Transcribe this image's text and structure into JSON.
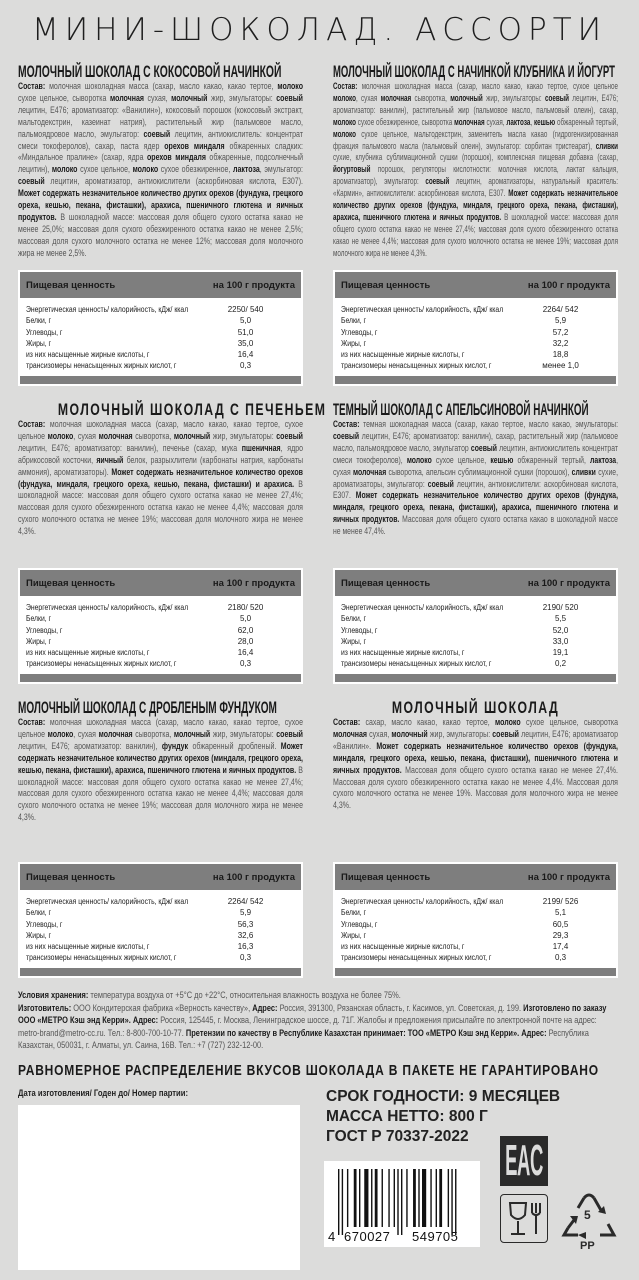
{
  "title": "МИНИ-ШОКОЛАД. АССОРТИ",
  "nutrition_header": {
    "label": "Пищевая ценность",
    "per": "на 100 г продукта"
  },
  "nutrition_labels": [
    "Энергетическая ценность/ калорийность, кДж/ ккал",
    "Белки, г",
    "Углеводы, г",
    "Жиры, г",
    "из них насыщенные жирные кислоты, г",
    "трансизомеры ненасыщенных жирных кислот, г"
  ],
  "sections": [
    {
      "title": "МОЛОЧНЫЙ ШОКОЛАД С КОКОСОВОЙ НАЧИНКОЙ",
      "composition": [
        "",
        "Состав:",
        " молочная шоколадная масса (сахар, масло какао, какао тертое, ",
        "молоко",
        " сухое цельное, сыворотка ",
        "молочная",
        " сухая, ",
        "молочный",
        " жир, эмульгаторы: ",
        "соевый",
        " лецитин, Е476; ароматизатор: «Ванилин»), кокосовый порошок (кокосовый экстракт, мальтодекстрин, казеинат натрия), растительный жир (пальмовое масло, пальмоядровое масло, эмульгатор: ",
        "соевый",
        " лецитин, антиокислитель: концентрат смеси токоферолов), сахар, паста ядер ",
        "орехов миндаля",
        " обжаренных сладких: «Миндальное пралине» (сахар, ядра ",
        "орехов миндаля",
        " обжаренные, подсолнечный лецитин), ",
        "молоко",
        " сухое цельное, ",
        "молоко",
        " сухое обезжиренное, ",
        "лактоза",
        ", эмульгатор: ",
        "соевый",
        " лецитин, ароматизатор, антиокислители (аскорбиновая кислота, Е307). ",
        "Может содержать незначительное количество других орехов (фундука, грецкого ореха, кешью, пекана, фисташки), арахиса, пшеничного глютена и яичных продуктов.",
        " В шоколадной массе: массовая доля общего сухого остатка какао не менее 25,0%; массовая доля сухого обезжиренного остатка какао не менее 2,5%; массовая доля сухого молочного остатка не менее 12%; массовая доля молочного жира не менее 2,5%."
      ],
      "nutrition": [
        "2250/ 540",
        "5,0",
        "51,0",
        "35,0",
        "16,4",
        "0,3"
      ]
    },
    {
      "title": "МОЛОЧНЫЙ ШОКОЛАД С НАЧИНКОЙ КЛУБНИКА И ЙОГУРТ",
      "composition": [
        "",
        "Состав:",
        " молочная шоколадная масса (сахар, масло какао, какао тертое, сухое цельное ",
        "молоко",
        ", сухая ",
        "молочная",
        " сыворотка, ",
        "молочный",
        " жир, эмульгаторы: ",
        "соевый",
        " лецитин, Е476; ароматизатор: ванилин), растительный жир (пальмовое масло, пальмовый олеин), сахар, ",
        "молоко",
        " сухое обезжиренное, сыворотка ",
        "молочная",
        " сухая, ",
        "лактоза",
        ", ",
        "кешью",
        " обжаренный тертый, ",
        "молоко",
        " сухое цельное, мальтодекстрин, заменитель масла какао (гидрогенизированная фракция пальмового масла (пальмовый олеин), эмульгатор: сорбитан тристеарат), ",
        "сливки",
        " сухие, клубника сублимационной сушки (порошок), комплексная пищевая добавка (сахар, ",
        "йогуртовый",
        " порошок, регуляторы кислотности: молочная кислота, лактат кальция, ароматизатор), эмульгатор: ",
        "соевый",
        " лецитин, ароматизаторы, натуральный краситель: «Кармин», антиокислители: аскорбиновая кислота, Е307. ",
        "Может содержать незначительное количество других орехов (фундука, миндаля, грецкого ореха, пекана, фисташки), арахиса, пшеничного глютена и яичных продуктов.",
        " В шоколадной массе: массовая доля общего сухого остатка какао не менее 27,4%; массовая доля сухого обезжиренного остатка какао не менее 4,4%; массовая доля сухого молочного остатка не менее 19%; массовая доля молочного жира не менее 4,3%."
      ],
      "nutrition": [
        "2264/ 542",
        "5,9",
        "57,2",
        "32,2",
        "18,8",
        "менее 1,0"
      ]
    },
    {
      "title": "МОЛОЧНЫЙ ШОКОЛАД С ПЕЧЕНЬЕМ",
      "composition": [
        "",
        "Состав:",
        " молочная шоколадная масса (сахар, масло какао, какао тертое, сухое цельное ",
        "молоко",
        ", сухая ",
        "молочная",
        " сыворотка, ",
        "молочный",
        " жир, эмульгаторы: ",
        "соевый",
        " лецитин, Е476; ароматизатор: ванилин), печенье (сахар, мука ",
        "пшеничная",
        ", ядро абрикосовой косточки, ",
        "яичный",
        " белок, разрыхлители (карбонаты натрия, карбонаты аммония), ароматизаторы). ",
        "Может содержать незначительное количество орехов (фундука, миндаля, грецкого ореха, кешью, пекана, фисташки) и арахиса.",
        " В шоколадной массе: массовая доля общего сухого остатка какао не менее 27,4%; массовая доля сухого обезжиренного остатка какао не менее 4,4%; массовая доля сухого молочного остатка не менее 19%; массовая доля молочного жира не менее 4,3%."
      ],
      "nutrition": [
        "2180/ 520",
        "5,0",
        "62,0",
        "28,0",
        "16,4",
        "0,3"
      ]
    },
    {
      "title": "ТЕМНЫЙ ШОКОЛАД С АПЕЛЬСИНОВОЙ НАЧИНКОЙ",
      "composition": [
        "",
        "Состав:",
        " темная шоколадная масса (сахар, какао тертое, масло какао, эмульгаторы: ",
        "соевый",
        " лецитин, Е476; ароматизатор: ванилин), сахар, растительный жир (пальмовое масло, пальмоядровое масло, эмульгатор ",
        "соевый",
        " лецитин, антиокислитель концентрат смеси токоферолов), ",
        "молоко",
        " сухое цельное, ",
        "кешью",
        " обжаренный тертый, ",
        "лактоза",
        ", сухая ",
        "молочная",
        " сыворотка, апельсин сублимационной сушки (порошок), ",
        "сливки",
        " сухие, ароматизаторы, эмульгатор: ",
        "соевый",
        " лецитин, антиокислители: аскорбиновая кислота, Е307. ",
        "Может содержать незначительное количество других орехов (фундука, миндаля, грецкого ореха, пекана, фисташки), арахиса, пшеничного глютена и яичных продуктов.",
        " Массовая доля общего сухого остатка какао в шоколадной массе не менее 47,4%."
      ],
      "nutrition": [
        "2190/ 520",
        "5,5",
        "52,0",
        "33,0",
        "19,1",
        "0,2"
      ]
    },
    {
      "title": "МОЛОЧНЫЙ ШОКОЛАД С ДРОБЛЕНЫМ ФУНДУКОМ",
      "composition": [
        "",
        "Состав:",
        " молочная шоколадная масса (сахар, масло какао, какао тертое, сухое цельное ",
        "молоко",
        ", сухая ",
        "молочная",
        " сыворотка, ",
        "молочный",
        " жир, эмульгаторы: ",
        "соевый",
        " лецитин, Е476; ароматизатор: ванилин), ",
        "фундук",
        " обжаренный дробленый. ",
        "Может содержать незначительное количество других орехов (миндаля, грецкого ореха, кешью, пекана, фисташки), арахиса, пшеничного глютена и яичных продуктов.",
        " В шоколадной массе: массовая доля общего сухого остатка какао не менее 27,4%; массовая доля сухого обезжиренного остатка какао не менее 4,4%; массовая доля сухого молочного остатка не менее 19%; массовая доля молочного жира не менее 4,3%."
      ],
      "nutrition": [
        "2264/ 542",
        "5,9",
        "56,3",
        "32,6",
        "16,3",
        "0,3"
      ]
    },
    {
      "title": "МОЛОЧНЫЙ ШОКОЛАД",
      "composition": [
        "",
        "Состав:",
        " сахар, масло какао, какао тертое, ",
        "молоко",
        " сухое цельное, сыворотка ",
        "молочная",
        " сухая, ",
        "молочный",
        " жир, эмульгаторы: ",
        "соевый",
        " лецитин, Е476; ароматизатор «Ванилин». ",
        "Может содержать незначительное количество орехов (фундука, миндаля, грецкого ореха, кешью, пекана, фисташки), пшеничного глютена и яичных продуктов.",
        " Массовая доля общего сухого остатка какао не менее 27,4%. Массовая доля сухого обезжиренного остатка какао не менее 4,4%. Массовая доля сухого молочного остатка не менее 19%. Массовая доля молочного жира не менее 4,3%."
      ],
      "nutrition": [
        "2199/ 526",
        "5,1",
        "60,5",
        "29,3",
        "17,4",
        "0,3"
      ]
    }
  ],
  "footer": {
    "storage": [
      "",
      "Условия хранения:",
      " температура воздуха от +5°С до +22°С, относительная влажность воздуха не более 75%."
    ],
    "manufacturer": [
      "",
      "Изготовитель:",
      " ООО Кондитерская фабрика «Верность качеству», ",
      "Адрес:",
      " Россия, 391300, Рязанская область, г. Касимов, ул. Советская, д. 199. ",
      "Изготовлено по заказу ООО «МЕТРО Кэш энд Керри». Адрес:",
      " Россия, 125445, г. Москва, Ленинградское шоссе, д. 71Г. Жалобы и предложения присылайте по электронной почте на адрес: metro-brand@metro-cc.ru. Тел.: 8-800-700-10-77. ",
      "Претензии по качеству в Республике Казахстан принимает: ТОО «МЕТРО Кэш энд Керри». Адрес:",
      " Республика Казахстан, 050031, г. Алматы, ул. Саина, 16В. Тел.: +7 (727) 232-12-00."
    ]
  },
  "banner": "РАВНОМЕРНОЕ РАСПРЕДЕЛЕНИЕ ВКУСОВ ШОКОЛАДА В ПАКЕТЕ НЕ ГАРАНТИРОВАНО",
  "date_label": "Дата изготовления/ Годен до/ Номер партии:",
  "shelf_life": "СРОК ГОДНОСТИ: 9 МЕСЯЦЕВ",
  "net_weight": "МАССА НЕТТО: 800 Г",
  "gost": "ГОСТ Р 70337-2022",
  "barcode": {
    "first": "4",
    "left": "670027",
    "right": "549705"
  },
  "marks": {
    "eac": "EAC",
    "food_contact_icon": "glass-fork-icon",
    "recycling_code": "5",
    "recycling_material": "PP"
  }
}
